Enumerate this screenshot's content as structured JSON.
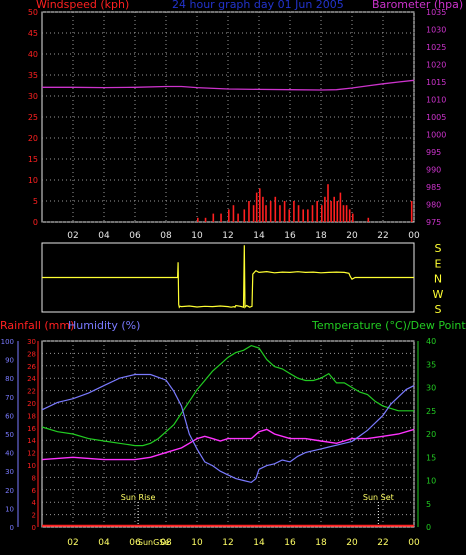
{
  "title": "24 hour graph day 01 Jun 2005",
  "colors": {
    "background": "#000000",
    "grid": "#9a9a9a",
    "frame": "#e8e8e8",
    "wind": "#ff2020",
    "baro": "#cc33cc",
    "dir": "#ffff33",
    "rain": "#ff2020",
    "humidity": "#7a7aff",
    "temperature": "#22cc22",
    "dewpoint": "#ff33ff",
    "sun": "#ffff66"
  },
  "x_ticks": [
    "02",
    "04",
    "06",
    "08",
    "10",
    "12",
    "14",
    "16",
    "18",
    "20",
    "22",
    "00"
  ],
  "chart_data": [
    {
      "type": "bar",
      "panel": "wind-barometer",
      "title": "24 hour graph day 01 Jun 2005",
      "left_axis": {
        "label": "Windspeed (kph)",
        "ticks": [
          "0",
          "5",
          "10",
          "15",
          "20",
          "25",
          "30",
          "35",
          "40",
          "45",
          "50"
        ],
        "range": [
          0,
          50
        ]
      },
      "right_axis": {
        "label": "Barometer (hpa)",
        "ticks": [
          "975",
          "980",
          "985",
          "990",
          "995",
          "1000",
          "1005",
          "1010",
          "1015",
          "1020",
          "1025",
          "1030",
          "1035"
        ],
        "range": [
          975,
          1035
        ]
      },
      "grid": true,
      "series": [
        {
          "name": "Windspeed (kph)",
          "type": "bar",
          "axis": "left",
          "x": [
            10.0,
            10.5,
            11.0,
            11.5,
            12.0,
            12.3,
            12.6,
            13.0,
            13.3,
            13.6,
            13.8,
            14.0,
            14.2,
            14.4,
            14.7,
            15.0,
            15.3,
            15.6,
            15.9,
            16.2,
            16.5,
            16.8,
            17.1,
            17.4,
            17.7,
            18.0,
            18.2,
            18.4,
            18.6,
            18.8,
            19.0,
            19.2,
            19.4,
            19.6,
            19.8,
            20.0,
            21.0,
            23.8
          ],
          "values": [
            1,
            1,
            2,
            2,
            3,
            4,
            2,
            3,
            5,
            4,
            7,
            8,
            6,
            4,
            5,
            6,
            4,
            5,
            3,
            5,
            4,
            3,
            3,
            4,
            5,
            4,
            6,
            9,
            5,
            6,
            5,
            7,
            4,
            4,
            3,
            2,
            1,
            5
          ]
        },
        {
          "name": "Barometer (hpa)",
          "type": "line",
          "axis": "right",
          "x": [
            0,
            2,
            4,
            6,
            8,
            9,
            10,
            12,
            14,
            16,
            18,
            19,
            20,
            21,
            22,
            23,
            24
          ],
          "values": [
            1013.5,
            1013.5,
            1013.4,
            1013.5,
            1013.7,
            1013.7,
            1013.4,
            1013.0,
            1012.9,
            1012.8,
            1012.7,
            1012.8,
            1013.3,
            1013.9,
            1014.5,
            1015.0,
            1015.5
          ]
        }
      ]
    },
    {
      "type": "line",
      "panel": "wind-direction",
      "right_labels": [
        "S",
        "E",
        "N",
        "W",
        "S"
      ],
      "series": [
        {
          "name": "Wind direction",
          "axis": "right",
          "x": [
            0,
            8.75,
            8.78,
            8.82,
            8.86,
            8.9,
            9,
            9.5,
            10,
            10.5,
            11,
            11.5,
            12,
            12.2,
            12.4,
            12.45,
            12.5,
            12.8,
            13,
            13.05,
            13.1,
            13.2,
            13.4,
            13.5,
            13.55,
            13.6,
            13.8,
            14,
            14.5,
            15,
            15.5,
            16,
            16.5,
            17,
            17.5,
            18,
            18.5,
            19,
            19.5,
            19.8,
            19.9,
            20,
            20.2,
            24
          ],
          "values": [
            180,
            180,
            270,
            20,
            5,
            10,
            8,
            12,
            6,
            10,
            8,
            12,
            8,
            5,
            8,
            5,
            15,
            10,
            5,
            370,
            5,
            15,
            5,
            8,
            10,
            200,
            220,
            210,
            215,
            208,
            212,
            210,
            214,
            210,
            212,
            208,
            210,
            212,
            210,
            205,
            185,
            170,
            180,
            180
          ]
        }
      ]
    },
    {
      "type": "line",
      "panel": "rain-humidity-temperature",
      "left_axes": [
        {
          "label": "Humidity (%)",
          "ticks": [
            "0",
            "10",
            "20",
            "30",
            "40",
            "50",
            "60",
            "70",
            "80",
            "90",
            "100"
          ],
          "range": [
            0,
            100
          ]
        },
        {
          "label": "Rainfall (mm)",
          "ticks": [
            "0",
            "2",
            "4",
            "6",
            "8",
            "10",
            "12",
            "14",
            "16",
            "18",
            "20",
            "22",
            "24",
            "26",
            "28",
            "30"
          ],
          "range": [
            0,
            30
          ]
        }
      ],
      "right_axis": {
        "label": "Temperature (°C)/Dew Point (°C)",
        "ticks": [
          "0",
          "5",
          "10",
          "15",
          "20",
          "25",
          "30",
          "35",
          "40"
        ],
        "range": [
          0,
          40
        ]
      },
      "grid": true,
      "annotations": [
        {
          "text": "Sun Rise",
          "x": 6.2
        },
        {
          "text": "Sun Set",
          "x": 21.7
        }
      ],
      "sun_label_bottom": "SunGSe",
      "series": [
        {
          "name": "Humidity (%)",
          "axis": "humidity",
          "x": [
            0,
            1,
            2,
            3,
            4,
            5,
            6,
            7,
            8,
            8.5,
            9,
            9.5,
            10,
            10.5,
            11,
            11.5,
            12,
            12.5,
            13,
            13.5,
            13.8,
            14,
            14.5,
            15,
            15.5,
            16,
            16.5,
            17,
            17.5,
            18,
            18.5,
            19,
            19.5,
            20,
            20.5,
            21,
            21.5,
            22,
            22.5,
            23,
            23.5,
            24
          ],
          "values": [
            63,
            67,
            69,
            72,
            76,
            80,
            82,
            82,
            79,
            73,
            65,
            50,
            42,
            35,
            33,
            30,
            28,
            26,
            25,
            24,
            26,
            31,
            33,
            34,
            36,
            35,
            38,
            40,
            41,
            42,
            43,
            44,
            45,
            46,
            49,
            52,
            56,
            60,
            66,
            70,
            74,
            76
          ]
        },
        {
          "name": "Rainfall (mm)",
          "axis": "rain",
          "x": [
            0,
            24
          ],
          "values": [
            0.2,
            0.2
          ]
        },
        {
          "name": "Temperature (°C)",
          "axis": "right",
          "x": [
            0,
            1,
            2,
            3,
            4,
            5,
            6,
            6.5,
            7,
            7.5,
            8,
            8.5,
            9,
            9.5,
            10,
            10.5,
            11,
            11.5,
            12,
            12.5,
            13,
            13.5,
            14,
            14.5,
            15,
            15.5,
            16,
            16.5,
            17,
            17.5,
            18,
            18.5,
            19,
            19.5,
            20,
            20.5,
            21,
            21.5,
            22,
            22.5,
            23,
            23.5,
            24
          ],
          "values": [
            21.5,
            20.5,
            20,
            19,
            18.5,
            18,
            17.5,
            17.5,
            18,
            19,
            20.5,
            22,
            24.5,
            27,
            29.5,
            31.5,
            33.5,
            35,
            36.5,
            37.5,
            38,
            39,
            38.5,
            36,
            34.5,
            34,
            33,
            32,
            31.5,
            31.5,
            32,
            33,
            31,
            31,
            30,
            29,
            28.5,
            27,
            26,
            25.5,
            25,
            25,
            25
          ]
        },
        {
          "name": "Dew Point (°C)",
          "axis": "right",
          "x": [
            0,
            2,
            4,
            6,
            7,
            8,
            9,
            9.5,
            10,
            10.5,
            11,
            11.5,
            12,
            12.5,
            13,
            13.5,
            14,
            14.5,
            15,
            16,
            17,
            18,
            19,
            20,
            21,
            22,
            23,
            24
          ],
          "values": [
            14.5,
            15,
            14.5,
            14.5,
            15,
            16,
            17,
            18,
            19,
            19.5,
            19,
            18.5,
            19,
            19,
            19,
            19,
            20.5,
            21,
            20,
            19,
            19,
            18.5,
            18,
            19,
            19,
            19.5,
            20,
            21
          ]
        }
      ]
    }
  ]
}
